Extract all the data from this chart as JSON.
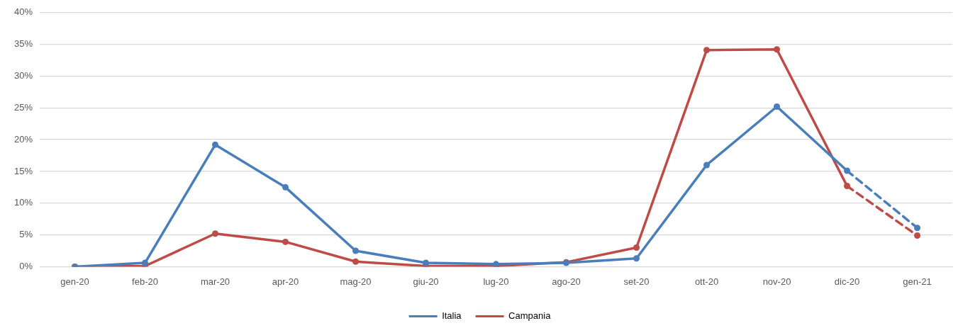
{
  "chart_data": {
    "type": "line",
    "categories": [
      "gen-20",
      "feb-20",
      "mar-20",
      "apr-20",
      "mag-20",
      "giu-20",
      "lug-20",
      "ago-20",
      "set-20",
      "ott-20",
      "nov-20",
      "dic-20",
      "gen-21"
    ],
    "series": [
      {
        "name": "Italia",
        "color": "#4a7ebb",
        "values": [
          0,
          0.6,
          19.2,
          12.5,
          2.5,
          0.6,
          0.4,
          0.6,
          1.3,
          16.0,
          25.2,
          15.1,
          null
        ]
      },
      {
        "name": "Campania",
        "color": "#be4b48",
        "values": [
          0,
          0.1,
          5.2,
          3.9,
          0.8,
          0.1,
          0.1,
          0.7,
          3.0,
          34.1,
          34.2,
          12.7,
          null
        ]
      },
      {
        "color": "#4a7ebb",
        "line_style": "dashed",
        "values": [
          null,
          null,
          null,
          null,
          null,
          null,
          null,
          null,
          null,
          null,
          null,
          15.1,
          6.1
        ]
      },
      {
        "color": "#be4b48",
        "line_style": "dashed",
        "values": [
          null,
          null,
          null,
          null,
          null,
          null,
          null,
          null,
          null,
          null,
          null,
          12.7,
          4.9
        ]
      }
    ],
    "ylim": [
      0,
      40
    ],
    "yticks": [
      {
        "value": 0,
        "label": "0%"
      },
      {
        "value": 5,
        "label": "5%"
      },
      {
        "value": 10,
        "label": "10%"
      },
      {
        "value": 15,
        "label": "15%"
      },
      {
        "value": 20,
        "label": "20%"
      },
      {
        "value": 25,
        "label": "25%"
      },
      {
        "value": 30,
        "label": "30%"
      },
      {
        "value": 35,
        "label": "35%"
      },
      {
        "value": 40,
        "label": "40%"
      }
    ],
    "grid": "y",
    "legend": "bottom",
    "marker": "circle",
    "line_style": "solid"
  }
}
